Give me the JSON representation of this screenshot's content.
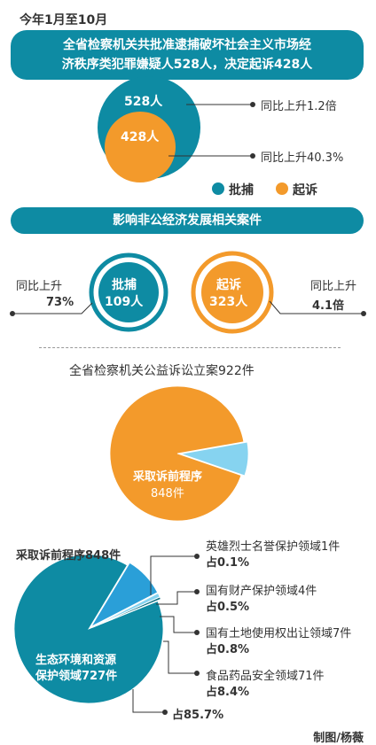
{
  "title": "今年1月至10月",
  "banner1": {
    "line1": "全省检察机关共批准逮捕破坏社会主义市场经",
    "line2": "济秩序类犯罪嫌疑人528人，决定起诉428人"
  },
  "colors": {
    "teal": "#0e8ba3",
    "orange": "#f39a2b",
    "lightblue": "#86d3f0",
    "brown": "#c98a2c",
    "blue": "#2a9fd8",
    "darkteal": "#0a6f82"
  },
  "section1": {
    "arrest_label": "528人",
    "prosecute_label": "428人",
    "arrest_growth": "同比上升1.2倍",
    "prosecute_growth": "同比上升40.3%",
    "legend_arrest": "批捕",
    "legend_prosecute": "起诉"
  },
  "banner2": "影响非公经济发展相关案件",
  "section2": {
    "left_growth_label": "同比上升",
    "left_growth_value": "73%",
    "arrest_title": "批捕",
    "arrest_value": "109人",
    "prosecute_title": "起诉",
    "prosecute_value": "323人",
    "right_growth_label": "同比上升",
    "right_growth_value": "4.1倍"
  },
  "section3": {
    "headline": "全省检察机关公益诉讼立案922件",
    "pie_label_line1": "采取诉前程序",
    "pie_label_line2": "848件"
  },
  "section4": {
    "headline": "采取诉前程序848件",
    "main_label_line1": "生态环境和资源",
    "main_label_line2": "保护领域727件",
    "main_share": "占85.7%",
    "items": [
      {
        "name": "英雄烈士名誉保护领域1件",
        "share": "占0.1%"
      },
      {
        "name": "国有财产保护领域4件",
        "share": "占0.5%"
      },
      {
        "name": "国有土地使用权出让领域7件",
        "share": "占0.8%"
      },
      {
        "name": "食品药品安全领域71件",
        "share": "占8.4%"
      }
    ]
  },
  "chart_data": [
    {
      "type": "pie",
      "title": "全省检察机关公益诉讼立案922件",
      "categories": [
        "采取诉前程序",
        ""
      ],
      "values": [
        848,
        74
      ]
    },
    {
      "type": "pie",
      "title": "采取诉前程序848件",
      "categories": [
        "生态环境和资源保护领域",
        "食品药品安全领域",
        "国有土地使用权出让领域",
        "国有财产保护领域",
        "英雄烈士名誉保护领域"
      ],
      "values": [
        727,
        71,
        7,
        4,
        1
      ],
      "shares": [
        85.7,
        8.4,
        0.8,
        0.5,
        0.1
      ]
    }
  ],
  "credit": "制图/杨薇"
}
